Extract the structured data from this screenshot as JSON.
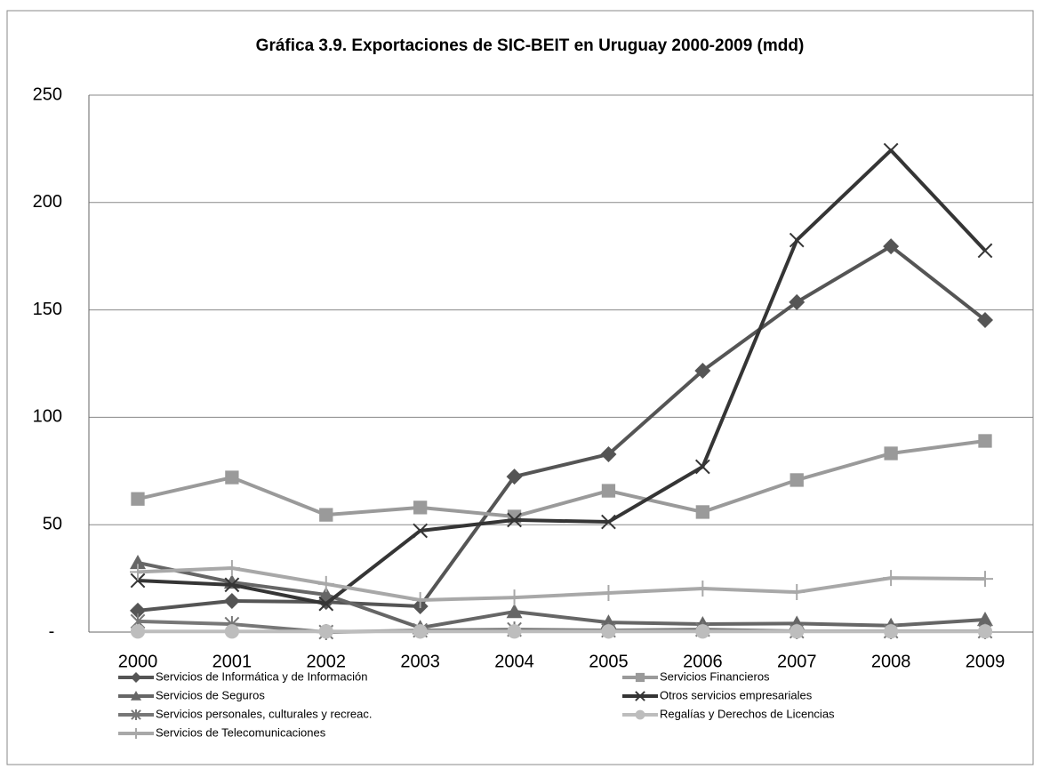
{
  "chart_data": {
    "type": "line",
    "title": "Gráfica 3.9. Exportaciones de SIC-BEIT en Uruguay  2000-2009 (mdd)",
    "categories": [
      "2000",
      "2001",
      "2002",
      "2003",
      "2004",
      "2005",
      "2006",
      "2007",
      "2008",
      "2009"
    ],
    "series": [
      {
        "name": "Servicios de Informática y de Información",
        "color": "#555555",
        "marker": "diamond",
        "values": [
          10,
          14.5,
          14,
          12,
          72.4,
          82.8,
          121.7,
          153.6,
          179.6,
          145.3
        ]
      },
      {
        "name": "Servicios Financieros",
        "color": "#9a9a9a",
        "marker": "square",
        "values": [
          62,
          72,
          54.6,
          58,
          53.8,
          65.8,
          55.9,
          70.8,
          83.2,
          89
        ]
      },
      {
        "name": "Servicios de Seguros",
        "color": "#666666",
        "marker": "triangle",
        "values": [
          32.3,
          23.2,
          17.4,
          2,
          9.5,
          4.5,
          3.7,
          4,
          3,
          5.8
        ]
      },
      {
        "name": "Otros servicios empresariales",
        "color": "#353535",
        "marker": "x",
        "values": [
          24,
          22,
          13.2,
          47.2,
          52.2,
          51.3,
          77,
          182.5,
          224.3,
          177.6
        ]
      },
      {
        "name": "Servicios personales, culturales y recreac.",
        "color": "#777777",
        "marker": "asterisk",
        "values": [
          5,
          3.7,
          0,
          0.8,
          1.2,
          0.8,
          1.2,
          0.4,
          0.4,
          0.4
        ]
      },
      {
        "name": "Regalías y Derechos de Licencias",
        "color": "#bdbdbd",
        "marker": "circle",
        "values": [
          0.3,
          0.3,
          0.3,
          0.3,
          0.3,
          0.3,
          0.3,
          0.3,
          0.3,
          0.3
        ]
      },
      {
        "name": "Servicios de Telecomunicaciones",
        "color": "#a8a8a8",
        "marker": "plus",
        "values": [
          28,
          29.8,
          22.4,
          14.9,
          16.1,
          18.2,
          20.3,
          18.6,
          25.2,
          24.8
        ]
      }
    ],
    "ylim": [
      0,
      250
    ],
    "yticks": [
      {
        "value": 0,
        "label": "-"
      },
      50,
      100,
      150,
      200,
      250
    ],
    "grid": true,
    "legend": "bottom"
  }
}
